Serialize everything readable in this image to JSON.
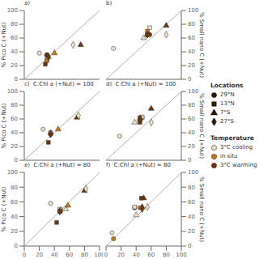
{
  "chart_data": [
    {
      "type": "scatter",
      "title": "a)",
      "ylabel": "% Pico C (+Nut)",
      "xlim": [
        0,
        100
      ],
      "ylim": [
        0,
        100
      ],
      "xticks": [
        0,
        20,
        40,
        60,
        80,
        100
      ],
      "yticks": [
        0,
        20,
        40,
        60,
        80,
        100
      ],
      "tick_labels": "y",
      "series": [
        {
          "type": "line",
          "x": [
            0,
            100
          ],
          "values": [
            0,
            100
          ],
          "color": "#b8b0a0"
        },
        {
          "name": "29°N",
          "marker": "circle",
          "x": [
            20,
            30,
            30
          ],
          "values": [
            38,
            36,
            35
          ],
          "colors": [
            "#e8dfc8",
            "#c87820",
            "#6b3510"
          ]
        },
        {
          "name": "13°N",
          "marker": "square",
          "x": [
            30,
            30,
            28
          ],
          "values": [
            29,
            27,
            22
          ],
          "colors": [
            "#e8dfc8",
            "#c87820",
            "#6b3510"
          ]
        },
        {
          "name": "7°S",
          "marker": "triangle",
          "x": [
            32,
            40,
            75
          ],
          "values": [
            32,
            38,
            50
          ],
          "colors": [
            "#e8dfc8",
            "#c87820",
            "#6b3510"
          ]
        },
        {
          "name": "27°S",
          "marker": "diamond",
          "x": [
            65,
            32,
            32
          ],
          "values": [
            50,
            33,
            33
          ],
          "colors": [
            "#e8dfc8",
            "#c87820",
            "#6b3510"
          ]
        }
      ]
    },
    {
      "type": "scatter",
      "title": "b)",
      "ylabel": "% Small nano C (+Nut)",
      "xlim": [
        0,
        100
      ],
      "ylim": [
        0,
        100
      ],
      "xticks": [
        0,
        20,
        40,
        60,
        80,
        100
      ],
      "yticks": [
        0,
        20,
        40,
        60,
        80,
        100
      ],
      "tick_labels": "y",
      "series": [
        {
          "type": "line",
          "x": [
            0,
            100
          ],
          "values": [
            0,
            100
          ],
          "color": "#b8b0a0"
        },
        {
          "name": "29°N",
          "marker": "circle",
          "x": [
            10,
            55,
            58
          ],
          "values": [
            45,
            65,
            65
          ],
          "colors": [
            "#e8dfc8",
            "#c87820",
            "#6b3510"
          ]
        },
        {
          "name": "13°N",
          "marker": "square",
          "x": [
            58,
            55,
            55
          ],
          "values": [
            75,
            70,
            65
          ],
          "colors": [
            "#e8dfc8",
            "#c87820",
            "#6b3510"
          ]
        },
        {
          "name": "7°S",
          "marker": "triangle",
          "x": [
            50,
            55,
            80
          ],
          "values": [
            60,
            65,
            78
          ],
          "colors": [
            "#e8dfc8",
            "#c87820",
            "#6b3510"
          ]
        },
        {
          "name": "27°S",
          "marker": "diamond",
          "x": [
            80,
            55,
            55
          ],
          "values": [
            65,
            65,
            65
          ],
          "colors": [
            "#e8dfc8",
            "#c87820",
            "#6b3510"
          ]
        }
      ]
    },
    {
      "type": "scatter",
      "title": "c)  C:Chl a (+Nut) = 100",
      "ylabel": "% Pico C (+Nut)",
      "xlim": [
        0,
        100
      ],
      "ylim": [
        0,
        100
      ],
      "xticks": [
        0,
        20,
        40,
        60,
        80,
        100
      ],
      "yticks": [
        0,
        20,
        40,
        60,
        80,
        100
      ],
      "tick_labels": "y",
      "series": [
        {
          "type": "line",
          "x": [
            0,
            100
          ],
          "values": [
            0,
            100
          ],
          "color": "#b8b0a0"
        },
        {
          "name": "29°N",
          "marker": "circle",
          "x": [
            25,
            35,
            35
          ],
          "values": [
            45,
            40,
            38
          ],
          "colors": [
            "#e8dfc8",
            "#c87820",
            "#6b3510"
          ]
        },
        {
          "name": "13°N",
          "marker": "square",
          "x": [
            35,
            35,
            32
          ],
          "values": [
            40,
            38,
            26
          ],
          "colors": [
            "#e8dfc8",
            "#c87820",
            "#6b3510"
          ]
        },
        {
          "name": "7°S",
          "marker": "triangle",
          "x": [
            35,
            45,
            70
          ],
          "values": [
            40,
            45,
            62
          ],
          "colors": [
            "#e8dfc8",
            "#c87820",
            "#6b3510"
          ]
        },
        {
          "name": "27°S",
          "marker": "diamond",
          "x": [
            72,
            35,
            35
          ],
          "values": [
            65,
            38,
            38
          ],
          "colors": [
            "#e8dfc8",
            "#c87820",
            "#6b3510"
          ]
        }
      ]
    },
    {
      "type": "scatter",
      "title": "d)  C:Chl a (+Nut) = 100",
      "ylabel": "% Small nano C (+Nut)",
      "xlim": [
        0,
        100
      ],
      "ylim": [
        0,
        100
      ],
      "xticks": [
        0,
        20,
        40,
        60,
        80,
        100
      ],
      "yticks": [
        0,
        20,
        40,
        60,
        80,
        100
      ],
      "tick_labels": "y",
      "series": [
        {
          "type": "line",
          "x": [
            0,
            100
          ],
          "values": [
            0,
            100
          ],
          "color": "#b8b0a0"
        },
        {
          "name": "29°N",
          "marker": "circle",
          "x": [
            18,
            45,
            48
          ],
          "values": [
            35,
            58,
            62
          ],
          "colors": [
            "#e8dfc8",
            "#c87820",
            "#6b3510"
          ]
        },
        {
          "name": "13°N",
          "marker": "square",
          "x": [
            48,
            45,
            45
          ],
          "values": [
            63,
            62,
            55
          ],
          "colors": [
            "#e8dfc8",
            "#c87820",
            "#6b3510"
          ]
        },
        {
          "name": "7°S",
          "marker": "triangle",
          "x": [
            38,
            45,
            60
          ],
          "values": [
            55,
            60,
            75
          ],
          "colors": [
            "#e8dfc8",
            "#c87820",
            "#6b3510"
          ]
        },
        {
          "name": "27°S",
          "marker": "diamond",
          "x": [
            60,
            45,
            45
          ],
          "values": [
            55,
            60,
            60
          ],
          "colors": [
            "#e8dfc8",
            "#c87820",
            "#6b3510"
          ]
        }
      ]
    },
    {
      "type": "scatter",
      "title": "e)  C:Chl a (+Nut) = 80",
      "ylabel": "% Pico C (+Nut)",
      "xlim": [
        0,
        100
      ],
      "ylim": [
        0,
        100
      ],
      "xticks": [
        0,
        20,
        40,
        60,
        80,
        100
      ],
      "yticks": [
        0,
        20,
        40,
        60,
        80,
        100
      ],
      "series": [
        {
          "type": "line",
          "x": [
            0,
            100
          ],
          "values": [
            0,
            100
          ],
          "color": "#b8b0a0"
        },
        {
          "name": "29°N",
          "marker": "circle",
          "x": [
            35,
            48,
            48
          ],
          "values": [
            58,
            50,
            47
          ],
          "colors": [
            "#e8dfc8",
            "#c87820",
            "#6b3510"
          ]
        },
        {
          "name": "13°N",
          "marker": "square",
          "x": [
            47,
            47,
            43
          ],
          "values": [
            50,
            47,
            32
          ],
          "colors": [
            "#e8dfc8",
            "#c87820",
            "#6b3510"
          ]
        },
        {
          "name": "7°S",
          "marker": "triangle",
          "x": [
            55,
            58,
            80
          ],
          "values": [
            50,
            55,
            75
          ],
          "colors": [
            "#e8dfc8",
            "#c87820",
            "#6b3510"
          ]
        },
        {
          "name": "27°S",
          "marker": "diamond",
          "x": [
            82,
            47,
            47
          ],
          "values": [
            78,
            47,
            47
          ],
          "colors": [
            "#e8dfc8",
            "#c87820",
            "#6b3510"
          ]
        }
      ]
    },
    {
      "type": "scatter",
      "title": "f)  C:Chl a (+Nut) = 80",
      "ylabel": "% Small nano C (+Nut)",
      "xlim": [
        0,
        100
      ],
      "ylim": [
        0,
        100
      ],
      "xticks": [
        0,
        20,
        40,
        60,
        80,
        100
      ],
      "yticks": [
        0,
        20,
        40,
        60,
        80,
        100
      ],
      "series": [
        {
          "type": "line",
          "x": [
            0,
            100
          ],
          "values": [
            0,
            100
          ],
          "color": "#b8b0a0"
        },
        {
          "name": "29°N",
          "marker": "circle",
          "x": [
            8,
            10,
            38
          ],
          "values": [
            18,
            10,
            52
          ],
          "colors": [
            "#e8dfc8",
            "#c87820",
            "#6b3510"
          ]
        },
        {
          "name": "13°N",
          "marker": "square",
          "x": [
            38,
            45,
            47
          ],
          "values": [
            53,
            52,
            65
          ],
          "colors": [
            "#e8dfc8",
            "#c87820",
            "#6b3510"
          ]
        },
        {
          "name": "7°S",
          "marker": "triangle",
          "x": [
            40,
            48,
            50
          ],
          "values": [
            42,
            53,
            65
          ],
          "colors": [
            "#e8dfc8",
            "#c87820",
            "#6b3510"
          ]
        },
        {
          "name": "27°S",
          "marker": "diamond",
          "x": [
            55,
            48,
            48
          ],
          "values": [
            53,
            50,
            52
          ],
          "colors": [
            "#e8dfc8",
            "#c87820",
            "#6b3510"
          ]
        }
      ]
    }
  ],
  "legends": [
    {
      "title": "Locations",
      "entries": [
        {
          "name": "29°N",
          "marker": "circle",
          "color": "#2a1a08"
        },
        {
          "name": "13°N",
          "marker": "square",
          "color": "#2a1a08"
        },
        {
          "name": "7°S",
          "marker": "triangle",
          "color": "#2a1a08"
        },
        {
          "name": "27°S",
          "marker": "diamond",
          "color": "#2a1a08"
        }
      ]
    },
    {
      "title": "Temperature",
      "entries": [
        {
          "name": "3°C cooling",
          "marker": "circle",
          "color": "#e8dfc8"
        },
        {
          "name": "in situ",
          "marker": "circle",
          "color": "#c87820"
        },
        {
          "name": "3°C warming",
          "marker": "circle",
          "color": "#6b3510"
        }
      ]
    }
  ]
}
